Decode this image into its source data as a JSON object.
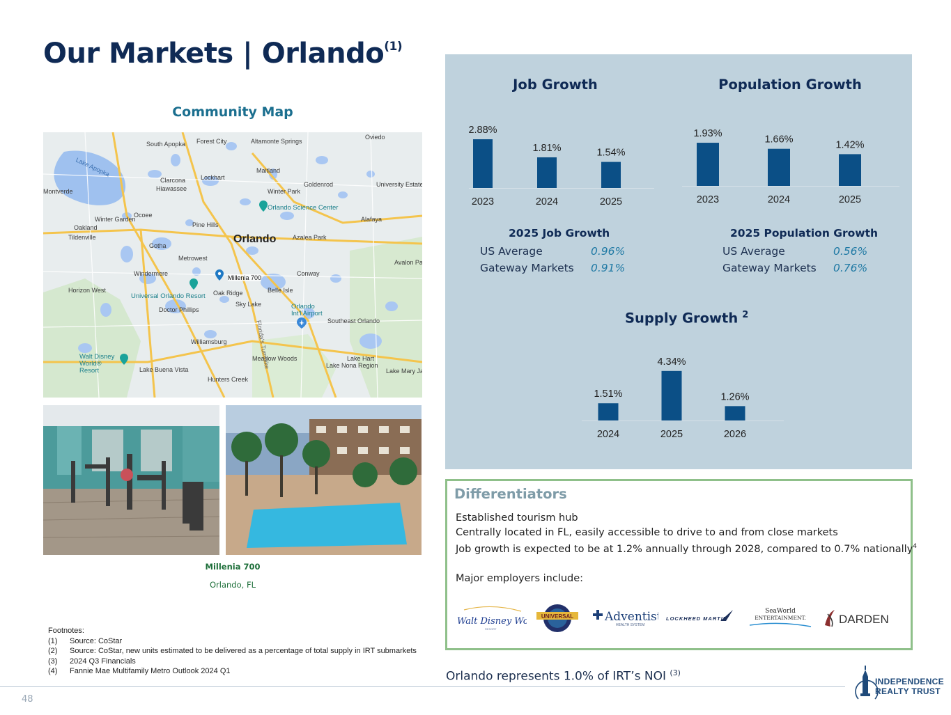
{
  "slide": {
    "title": "Our Markets | Orlando",
    "title_footnote": "(1)",
    "page_number": "48"
  },
  "map": {
    "heading": "Community Map",
    "city": "Orlando",
    "pin_label": "Millenia 700",
    "labels": [
      "Lake Apopka",
      "South Apopka",
      "Forest City",
      "Altamonte Springs",
      "Oviedo",
      "Maitland",
      "Lockhart",
      "Clarcona",
      "Hiawassee",
      "Goldenrod",
      "Winter Park",
      "University Estates",
      "Ocoee",
      "Winter Garden",
      "Oakland",
      "Tildenville",
      "Pine Hills",
      "Gotha",
      "Azalea Park",
      "Alafaya",
      "Metrowest",
      "Windermere",
      "Conway",
      "Avalon Park",
      "Horizon West",
      "Oak Ridge",
      "Belle Isle",
      "Doctor Phillips",
      "Sky Lake",
      "Southeast Orlando",
      "Williamsburg",
      "Lake Hart",
      "Meadow Woods",
      "Lake Nona Region",
      "Lake Buena Vista",
      "Hunters Creek",
      "Lake Mary Jane",
      "Montverde"
    ],
    "pois": [
      "Orlando Science Center",
      "Universal Orlando Resort",
      "Orlando Int'l Airport",
      "Walt Disney World® Resort",
      "Florida's Turnpike"
    ]
  },
  "property": {
    "name": "Millenia 700",
    "location": "Orlando, FL"
  },
  "footnotes": {
    "heading": "Footnotes:",
    "items": [
      {
        "num": "(1)",
        "text": "Source: CoStar"
      },
      {
        "num": "(2)",
        "text": "Source: CoStar, new units estimated to be delivered as a percentage of total supply in IRT submarkets"
      },
      {
        "num": "(3)",
        "text": "2024 Q3 Financials"
      },
      {
        "num": "(4)",
        "text": "Fannie Mae Multifamily Metro Outlook 2024 Q1"
      }
    ]
  },
  "chart_data": [
    {
      "type": "bar",
      "title": "Job Growth",
      "categories": [
        "2023",
        "2024",
        "2025"
      ],
      "values": [
        2.88,
        1.81,
        1.54
      ],
      "value_labels": [
        "2.88%",
        "1.81%",
        "1.54%"
      ],
      "unit": "%",
      "grid": false,
      "color": "#0b4f86"
    },
    {
      "type": "bar",
      "title": "Population Growth",
      "categories": [
        "2023",
        "2024",
        "2025"
      ],
      "values": [
        1.93,
        1.66,
        1.42
      ],
      "value_labels": [
        "1.93%",
        "1.66%",
        "1.42%"
      ],
      "unit": "%",
      "grid": false,
      "color": "#0b4f86"
    },
    {
      "type": "bar",
      "title": "Supply Growth",
      "title_superscript": "2",
      "categories": [
        "2024",
        "2025",
        "2026"
      ],
      "values": [
        1.51,
        4.34,
        1.26
      ],
      "value_labels": [
        "1.51%",
        "4.34%",
        "1.26%"
      ],
      "unit": "%",
      "grid": false,
      "color": "#0b4f86"
    }
  ],
  "comparisons": {
    "job": {
      "title": "2025 Job Growth",
      "rows": [
        {
          "label": "US Average",
          "value": "0.96%"
        },
        {
          "label": "Gateway Markets",
          "value": "0.91%"
        }
      ]
    },
    "population": {
      "title": "2025 Population Growth",
      "rows": [
        {
          "label": "US Average",
          "value": "0.56%"
        },
        {
          "label": "Gateway Markets",
          "value": "0.76%"
        }
      ]
    }
  },
  "differentiators": {
    "title": "Differentiators",
    "line1": "Established tourism hub",
    "line2": "Centrally located in FL, easily accessible to drive to and from close markets",
    "line3": "Job growth is expected to be at 1.2% annually through 2028, compared to 0.7% nationally",
    "line3_sup": "4",
    "line4": "Major employers include:",
    "employers": [
      "Walt Disney World",
      "Universal Orlando",
      "Adventist Health System",
      "Lockheed Martin",
      "SeaWorld Entertainment",
      "Darden"
    ]
  },
  "noi_note": {
    "text": "Orlando represents 1.0% of IRT’s NOI",
    "sup": "(3)"
  },
  "logo": {
    "line1": "INDEPENDENCE",
    "line2": "REALTY TRUST"
  },
  "colors": {
    "title_navy": "#0f2a55",
    "panel_blue": "#bfd2dd",
    "bar_blue": "#0b4f86",
    "value_teal": "#1f79a4",
    "border_green": "#8fc08a"
  }
}
